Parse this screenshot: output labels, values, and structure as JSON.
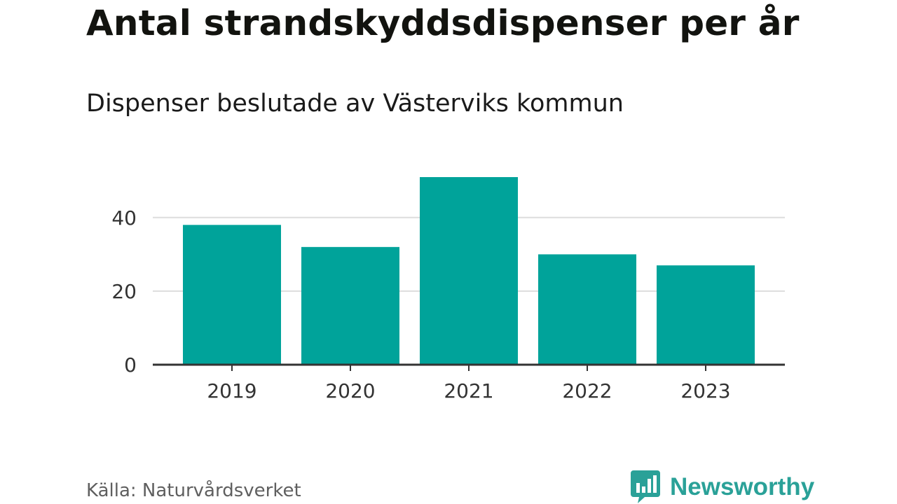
{
  "title": "Antal strandskyddsdispenser per år",
  "subtitle": "Dispenser beslutade av Västerviks kommun",
  "source": "Källa: Naturvårdsverket",
  "brand": {
    "name": "Newsworthy",
    "color": "#2aa198",
    "icon": "bar-chart-speech-bubble-icon"
  },
  "colors": {
    "bar": "#00a39a",
    "grid": "#dddddd",
    "axis": "#333333"
  },
  "chart_data": {
    "type": "bar",
    "categories": [
      "2019",
      "2020",
      "2021",
      "2022",
      "2023"
    ],
    "values": [
      38,
      32,
      51,
      30,
      27
    ],
    "yticks": [
      0,
      20,
      40
    ],
    "ylim": [
      0,
      51
    ],
    "grid": true,
    "xlabel": "",
    "ylabel": ""
  }
}
